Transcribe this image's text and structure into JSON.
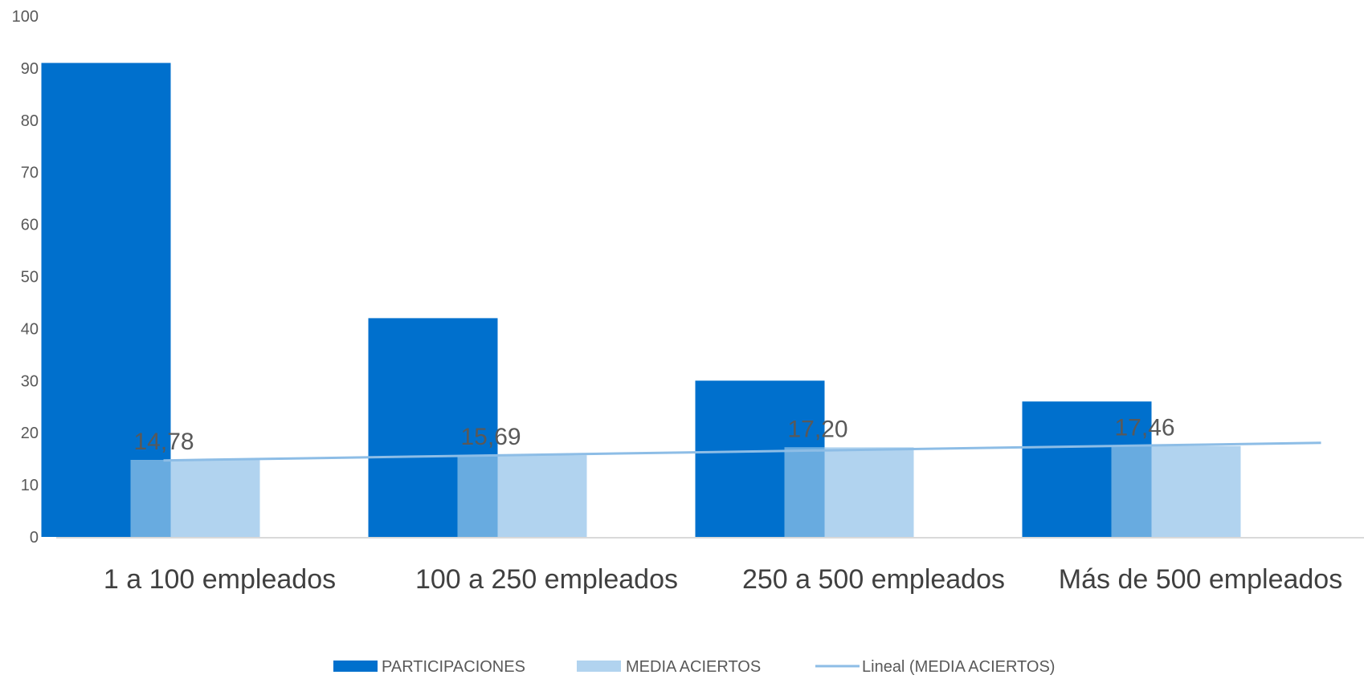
{
  "chart_data": {
    "type": "bar",
    "categories": [
      "1 a 100 empleados",
      "100 a 250 empleados",
      "250 a 500 empleados",
      "Más de 500 empleados"
    ],
    "series": [
      {
        "name": "PARTICIPACIONES",
        "values": [
          91,
          42,
          30,
          26
        ],
        "color": "#0070CD"
      },
      {
        "name": "MEDIA ACIERTOS",
        "values": [
          14.78,
          15.69,
          17.2,
          17.46
        ],
        "labels": [
          "14,78",
          "15,69",
          "17,20",
          "17,46"
        ],
        "color": "#B1D3EF"
      }
    ],
    "trendline": {
      "name": "Lineal (MEDIA ACIERTOS)",
      "of_series": "MEDIA ACIERTOS",
      "type": "linear",
      "color": "#8DBDE6"
    },
    "ylim": [
      0,
      100
    ],
    "yticks": [
      "0",
      "10",
      "20",
      "30",
      "40",
      "50",
      "60",
      "70",
      "80",
      "90",
      "100"
    ],
    "grid": false,
    "legend_position": "bottom"
  }
}
